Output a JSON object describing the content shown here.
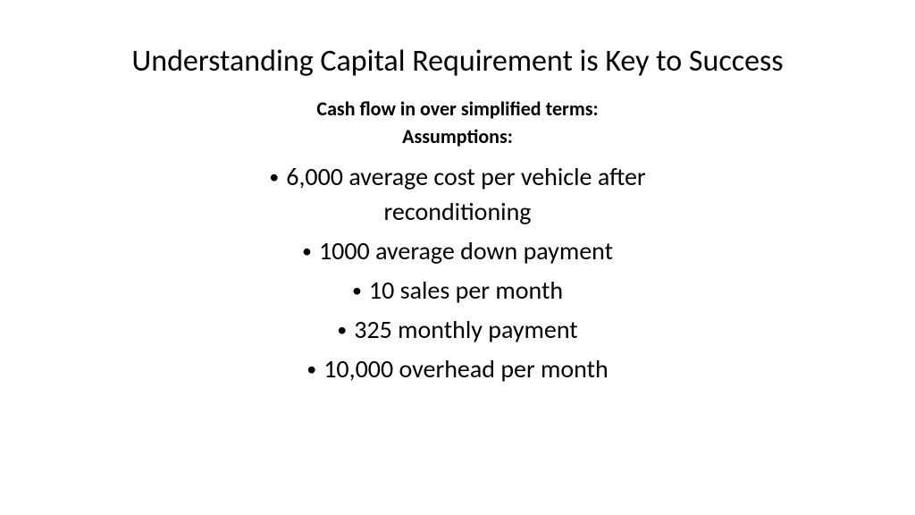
{
  "slide": {
    "title": "Understanding Capital Requirement is Key to Success",
    "subtitle1": "Cash flow in over simplified terms:",
    "subtitle2": "Assumptions:",
    "bullets": {
      "b1_line1": "6,000 average cost per vehicle after",
      "b1_line2": "reconditioning",
      "b2": "1000 average down payment",
      "b3": "10 sales per month",
      "b4": "325 monthly payment",
      "b5": "10,000 overhead per month"
    },
    "colors": {
      "background": "#ffffff",
      "text": "#000000"
    },
    "fonts": {
      "title_size": 34,
      "subtitle_size": 22,
      "bullet_size": 28
    }
  }
}
